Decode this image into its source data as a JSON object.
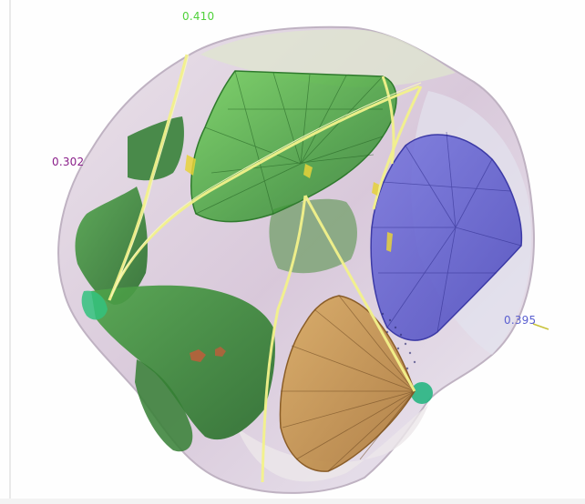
{
  "weights": {
    "green": "0.410",
    "magenta": "0.302",
    "blue": "0.395"
  },
  "colors": {
    "green_label": "#4fd13a",
    "magenta_label": "#8a1f8a",
    "blue_label": "#5a5fd0",
    "rough_shell": "#cdb7cf",
    "green_gem": "#3fa83a",
    "blue_gem": "#5a56c8",
    "orange_gem": "#c7883a",
    "inclusions": "#2f7a30",
    "cut_plane": "#f4f48a"
  },
  "icons": [
    "rough-stone-model",
    "green-gem-model",
    "blue-gem-model",
    "orange-gem-model"
  ]
}
